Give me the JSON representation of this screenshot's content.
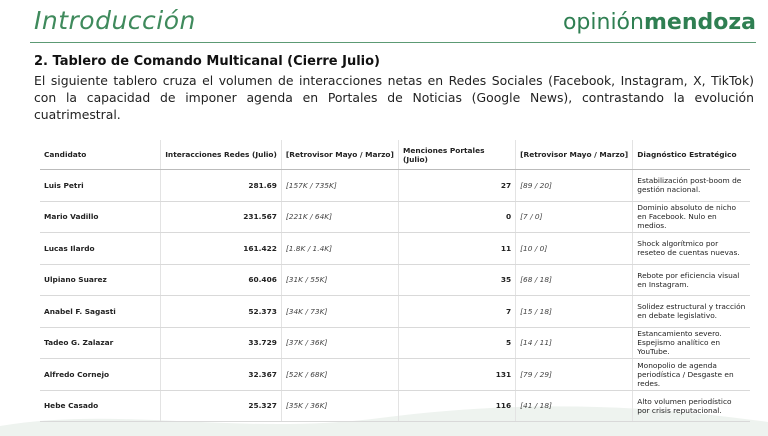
{
  "header": {
    "title": "Introducción",
    "logo_light": "opinión",
    "logo_bold": "mendoza"
  },
  "section": {
    "heading": "2. Tablero de Comando Multicanal (Cierre Julio)",
    "paragraph": "El siguiente tablero cruza el volumen de interacciones netas en Redes Sociales (Facebook, Instagram, X, TikTok) con la capacidad de imponer agenda en Portales de Noticias (Google News), contrastando la evolución cuatrimestral."
  },
  "table": {
    "columns": [
      "Candidato",
      "Interacciones Redes (Julio)",
      "[Retrovisor Mayo / Marzo]",
      "Menciones Portales (Julio)",
      "[Retrovisor Mayo / Marzo]",
      "Diagnóstico Estratégico"
    ],
    "rows": [
      [
        "Luis Petri",
        "281.69",
        "[157K / 735K]",
        "27",
        "[89 / 20]",
        "Estabilización post-boom de gestión nacional."
      ],
      [
        "Mario Vadillo",
        "231.567",
        "[221K / 64K]",
        "0",
        "[7 / 0]",
        "Dominio absoluto de nicho en Facebook. Nulo en medios."
      ],
      [
        "Lucas Ilardo",
        "161.422",
        "[1.8K / 1.4K]",
        "11",
        "[10 / 0]",
        "Shock algorítmico por reseteo de cuentas nuevas."
      ],
      [
        "Ulpiano Suarez",
        "60.406",
        "[31K / 55K]",
        "35",
        "[68 / 18]",
        "Rebote por eficiencia visual en Instagram."
      ],
      [
        "Anabel F. Sagasti",
        "52.373",
        "[34K / 73K]",
        "7",
        "[15 / 18]",
        "Solidez estructural y tracción en debate legislativo."
      ],
      [
        "Tadeo G. Zalazar",
        "33.729",
        "[37K / 36K]",
        "5",
        "[14 / 11]",
        "Estancamiento severo. Espejismo analítico en YouTube."
      ],
      [
        "Alfredo Cornejo",
        "32.367",
        "[52K / 68K]",
        "131",
        "[79 / 29]",
        "Monopolio de agenda periodística / Desgaste en redes."
      ],
      [
        "Hebe Casado",
        "25.327",
        "[35K / 36K]",
        "116",
        "[41 / 18]",
        "Alto volumen periodístico por crisis reputacional."
      ]
    ]
  }
}
